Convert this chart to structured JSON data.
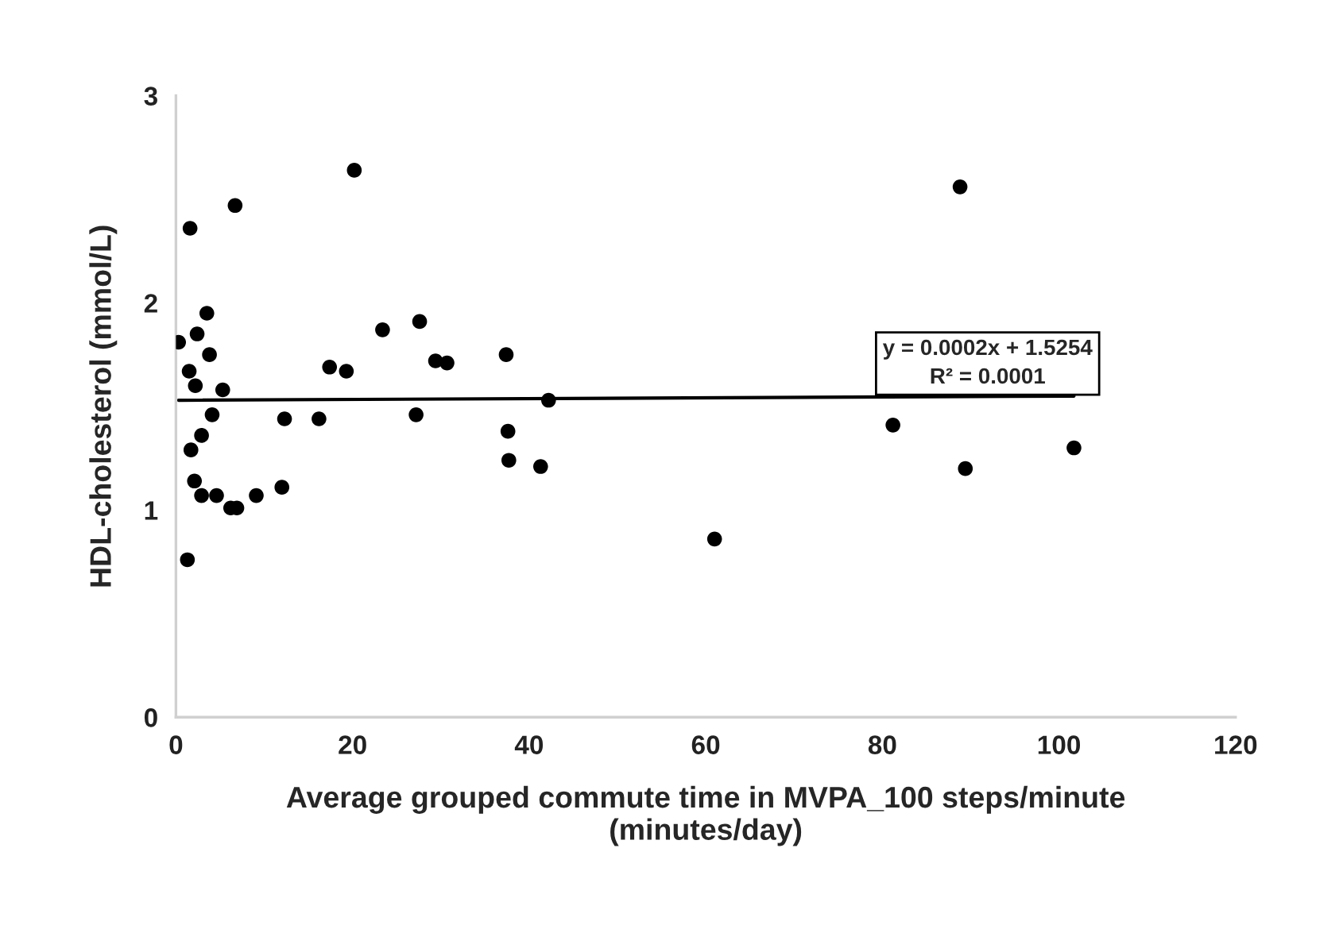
{
  "chart_data": {
    "type": "scatter",
    "xlabel": "Average grouped commute time in MVPA_100 steps/minute\n(minutes/day)",
    "ylabel": "HDL-cholesterol (mmol/L)",
    "xlim": [
      0,
      120
    ],
    "xticks": [
      0,
      20,
      40,
      60,
      80,
      100,
      120
    ],
    "ylim": [
      0,
      3
    ],
    "yticks": [
      0,
      1,
      2,
      3
    ],
    "grid": false,
    "legend": false,
    "annotations": [
      "y = 0.0002x + 1.5254\nR² = 0.0001"
    ],
    "series": [
      {
        "marker": "circle",
        "color": "#000000",
        "x": [
          20.2,
          6.7,
          1.6,
          3.5,
          2.4,
          0.3,
          3.8,
          1.5,
          2.2,
          5.3,
          4.1,
          2.9,
          1.7,
          2.1,
          2.9,
          4.6,
          6.2,
          6.9,
          9.1,
          12.0,
          1.3,
          12.3,
          16.2,
          17.4,
          19.3,
          23.4,
          27.6,
          27.2,
          29.4,
          30.7,
          37.4,
          37.6,
          37.7,
          41.3,
          42.2,
          61.0,
          88.8,
          81.2,
          89.4,
          101.7
        ],
        "values": [
          2.64,
          2.47,
          2.36,
          1.95,
          1.85,
          1.81,
          1.75,
          1.67,
          1.6,
          1.58,
          1.46,
          1.36,
          1.29,
          1.14,
          1.07,
          1.07,
          1.01,
          1.01,
          1.07,
          1.11,
          0.76,
          1.44,
          1.44,
          1.69,
          1.67,
          1.87,
          1.91,
          1.46,
          1.72,
          1.71,
          1.75,
          1.38,
          1.24,
          1.21,
          1.53,
          0.86,
          2.56,
          1.41,
          1.2,
          1.3
        ]
      },
      {
        "type": "line",
        "marker": "none",
        "color": "#000000",
        "line_style": "solid",
        "x": [
          0.3,
          101.7
        ],
        "values": [
          1.53,
          1.55
        ]
      }
    ]
  }
}
